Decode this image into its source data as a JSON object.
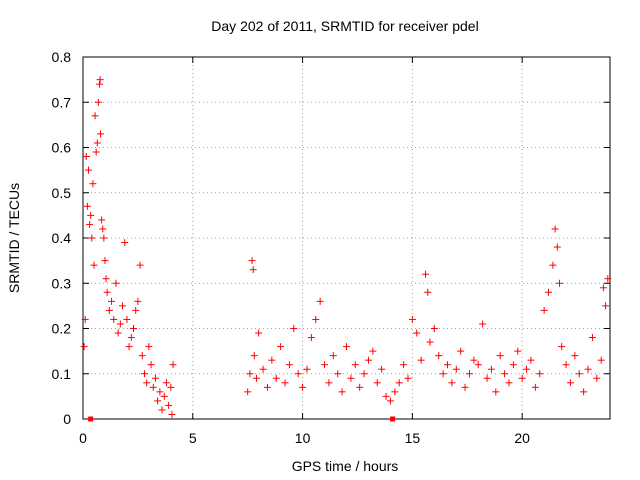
{
  "chart_data": {
    "type": "scatter",
    "title": "Day 202 of 2011, SRMTID for receiver pdel",
    "xlabel": "GPS time / hours",
    "ylabel": "SRMTID / TECUs",
    "xlim": [
      0,
      24
    ],
    "ylim": [
      0,
      0.8
    ],
    "x_ticks": [
      0,
      5,
      10,
      15,
      20
    ],
    "x_tick_labels": [
      "0",
      "5",
      "10",
      "15",
      "20"
    ],
    "y_ticks": [
      0,
      0.1,
      0.2,
      0.3,
      0.4,
      0.5,
      0.6,
      0.7,
      0.8
    ],
    "y_tick_labels": [
      "0",
      "0.1",
      "0.2",
      "0.3",
      "0.4",
      "0.5",
      "0.6",
      "0.7",
      "0.8"
    ],
    "grid": true,
    "marker": "plus",
    "color": "#ff0000",
    "series": [
      {
        "name": "pdel",
        "points": [
          [
            0.05,
            0.16
          ],
          [
            0.1,
            0.22
          ],
          [
            0.15,
            0.58
          ],
          [
            0.2,
            0.47
          ],
          [
            0.25,
            0.55
          ],
          [
            0.3,
            0.43
          ],
          [
            0.35,
            0.45
          ],
          [
            0.4,
            0.4
          ],
          [
            0.45,
            0.52
          ],
          [
            0.5,
            0.34
          ],
          [
            0.55,
            0.67
          ],
          [
            0.6,
            0.59
          ],
          [
            0.65,
            0.61
          ],
          [
            0.7,
            0.7
          ],
          [
            0.75,
            0.74
          ],
          [
            0.78,
            0.75
          ],
          [
            0.8,
            0.63
          ],
          [
            0.85,
            0.44
          ],
          [
            0.9,
            0.42
          ],
          [
            0.95,
            0.4
          ],
          [
            1.0,
            0.35
          ],
          [
            1.05,
            0.31
          ],
          [
            1.1,
            0.28
          ],
          [
            1.2,
            0.24
          ],
          [
            1.3,
            0.26
          ],
          [
            1.4,
            0.22
          ],
          [
            1.5,
            0.3
          ],
          [
            1.6,
            0.19
          ],
          [
            1.7,
            0.21
          ],
          [
            1.8,
            0.25
          ],
          [
            1.9,
            0.39
          ],
          [
            2.0,
            0.22
          ],
          [
            2.1,
            0.16
          ],
          [
            2.2,
            0.18
          ],
          [
            2.3,
            0.2
          ],
          [
            2.4,
            0.24
          ],
          [
            2.5,
            0.26
          ],
          [
            2.6,
            0.34
          ],
          [
            2.7,
            0.14
          ],
          [
            2.8,
            0.1
          ],
          [
            2.9,
            0.08
          ],
          [
            3.0,
            0.16
          ],
          [
            3.1,
            0.12
          ],
          [
            3.2,
            0.07
          ],
          [
            3.3,
            0.09
          ],
          [
            3.4,
            0.04
          ],
          [
            3.5,
            0.06
          ],
          [
            3.6,
            0.02
          ],
          [
            3.7,
            0.05
          ],
          [
            3.8,
            0.08
          ],
          [
            3.9,
            0.03
          ],
          [
            4.0,
            0.07
          ],
          [
            4.05,
            0.01
          ],
          [
            4.1,
            0.12
          ],
          [
            7.5,
            0.06
          ],
          [
            7.6,
            0.1
          ],
          [
            7.7,
            0.35
          ],
          [
            7.75,
            0.33
          ],
          [
            7.8,
            0.14
          ],
          [
            7.9,
            0.09
          ],
          [
            8.0,
            0.19
          ],
          [
            8.2,
            0.11
          ],
          [
            8.4,
            0.07
          ],
          [
            8.6,
            0.13
          ],
          [
            8.8,
            0.09
          ],
          [
            9.0,
            0.16
          ],
          [
            9.2,
            0.08
          ],
          [
            9.4,
            0.12
          ],
          [
            9.6,
            0.2
          ],
          [
            9.8,
            0.1
          ],
          [
            10.0,
            0.07
          ],
          [
            10.2,
            0.11
          ],
          [
            10.4,
            0.18
          ],
          [
            10.6,
            0.22
          ],
          [
            10.8,
            0.26
          ],
          [
            11.0,
            0.12
          ],
          [
            11.2,
            0.08
          ],
          [
            11.4,
            0.14
          ],
          [
            11.6,
            0.1
          ],
          [
            11.8,
            0.06
          ],
          [
            12.0,
            0.16
          ],
          [
            12.2,
            0.09
          ],
          [
            12.4,
            0.12
          ],
          [
            12.6,
            0.07
          ],
          [
            12.8,
            0.1
          ],
          [
            13.0,
            0.13
          ],
          [
            13.2,
            0.15
          ],
          [
            13.4,
            0.08
          ],
          [
            13.6,
            0.11
          ],
          [
            13.8,
            0.05
          ],
          [
            14.0,
            0.04
          ],
          [
            14.2,
            0.06
          ],
          [
            14.4,
            0.08
          ],
          [
            14.6,
            0.12
          ],
          [
            14.8,
            0.09
          ],
          [
            15.0,
            0.22
          ],
          [
            15.2,
            0.19
          ],
          [
            15.4,
            0.13
          ],
          [
            15.6,
            0.32
          ],
          [
            15.7,
            0.28
          ],
          [
            15.8,
            0.17
          ],
          [
            16.0,
            0.2
          ],
          [
            16.2,
            0.14
          ],
          [
            16.4,
            0.1
          ],
          [
            16.6,
            0.12
          ],
          [
            16.8,
            0.08
          ],
          [
            17.0,
            0.11
          ],
          [
            17.2,
            0.15
          ],
          [
            17.4,
            0.07
          ],
          [
            17.6,
            0.1
          ],
          [
            17.8,
            0.13
          ],
          [
            18.0,
            0.12
          ],
          [
            18.2,
            0.21
          ],
          [
            18.4,
            0.09
          ],
          [
            18.6,
            0.11
          ],
          [
            18.8,
            0.06
          ],
          [
            19.0,
            0.14
          ],
          [
            19.2,
            0.1
          ],
          [
            19.4,
            0.08
          ],
          [
            19.6,
            0.12
          ],
          [
            19.8,
            0.15
          ],
          [
            20.0,
            0.09
          ],
          [
            20.2,
            0.11
          ],
          [
            20.4,
            0.13
          ],
          [
            20.6,
            0.07
          ],
          [
            20.8,
            0.1
          ],
          [
            21.0,
            0.24
          ],
          [
            21.2,
            0.28
          ],
          [
            21.4,
            0.34
          ],
          [
            21.5,
            0.42
          ],
          [
            21.6,
            0.38
          ],
          [
            21.7,
            0.3
          ],
          [
            21.8,
            0.16
          ],
          [
            22.0,
            0.12
          ],
          [
            22.2,
            0.08
          ],
          [
            22.4,
            0.14
          ],
          [
            22.6,
            0.1
          ],
          [
            22.8,
            0.06
          ],
          [
            23.0,
            0.11
          ],
          [
            23.2,
            0.18
          ],
          [
            23.4,
            0.09
          ],
          [
            23.6,
            0.13
          ],
          [
            23.7,
            0.29
          ],
          [
            23.8,
            0.25
          ],
          [
            23.9,
            0.31
          ]
        ]
      }
    ],
    "special_points": [
      [
        0.35,
        0.0
      ],
      [
        14.1,
        0.0
      ]
    ]
  }
}
